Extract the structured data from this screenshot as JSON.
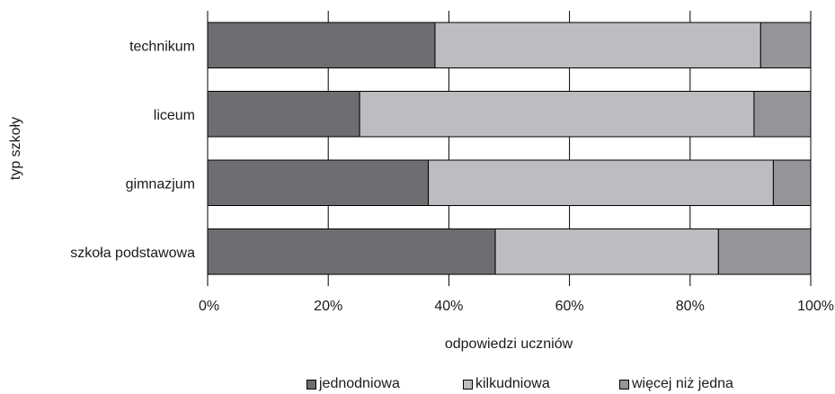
{
  "chart_data": {
    "type": "bar",
    "orientation": "horizontal",
    "stacked": true,
    "percent": true,
    "categories": [
      "szkoła podstawowa",
      "gimnazjum",
      "liceum",
      "technikum"
    ],
    "series": [
      {
        "name": "jednodniowa",
        "color": "#6d6e71",
        "values": [
          47.7,
          36.6,
          25.2,
          37.7
        ]
      },
      {
        "name": "kilkudniowa",
        "color": "#bcbdc0",
        "values": [
          37.0,
          57.2,
          65.4,
          54.0
        ]
      },
      {
        "name": "więcej niż jedna",
        "color": "#939598",
        "values": [
          15.3,
          6.2,
          9.4,
          8.3
        ]
      }
    ],
    "xlabel": "odpowiedzi uczniów",
    "ylabel": "typ szkoły",
    "xlim": [
      0,
      100
    ],
    "xticks": [
      "0%",
      "20%",
      "40%",
      "60%",
      "80%",
      "100%"
    ],
    "grid": true,
    "legend_position": "bottom"
  }
}
